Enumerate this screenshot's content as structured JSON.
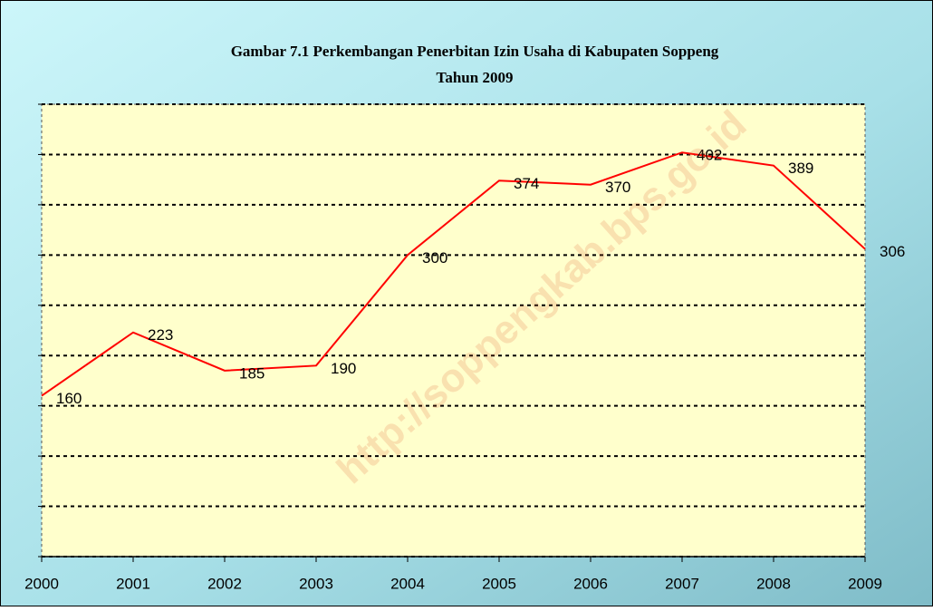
{
  "chart_data": {
    "type": "line",
    "title": "Gambar 7.1 Perkembangan Penerbitan Izin Usaha di Kabupaten Soppeng",
    "subtitle": "Tahun 2009",
    "watermark": "http://soppengkab.bps.go.id",
    "categories": [
      "2000",
      "2001",
      "2002",
      "2003",
      "2004",
      "2005",
      "2006",
      "2007",
      "2008",
      "2009"
    ],
    "series": [
      {
        "name": "Izin Usaha",
        "color": "#ff0000",
        "values": [
          160,
          223,
          185,
          190,
          300,
          374,
          370,
          402,
          389,
          306
        ]
      }
    ],
    "ylim": [
      0,
      450
    ],
    "yticks": [
      0,
      50,
      100,
      150,
      200,
      250,
      300,
      350,
      400,
      450
    ],
    "grid": true
  }
}
